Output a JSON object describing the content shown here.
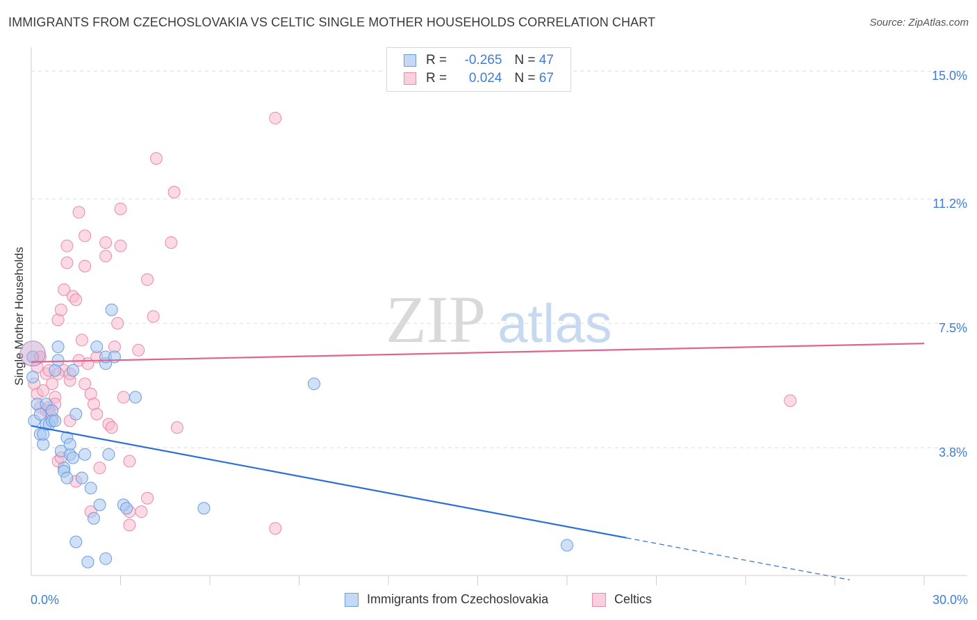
{
  "title": "IMMIGRANTS FROM CZECHOSLOVAKIA VS CELTIC SINGLE MOTHER HOUSEHOLDS CORRELATION CHART",
  "source": "Source: ZipAtlas.com",
  "watermark": {
    "zip": "ZIP",
    "atlas": "atlas"
  },
  "legend": {
    "rows": [
      {
        "r_label": "R =",
        "r_value": "-0.265",
        "n_label": "N =",
        "n_value": "47"
      },
      {
        "r_label": "R =",
        "r_value": "0.024",
        "n_label": "N =",
        "n_value": "67"
      }
    ]
  },
  "colors": {
    "blue_fill": "#a9c8f0",
    "blue_stroke": "#6a9be0",
    "blue_line": "#2a6fd6",
    "pink_fill": "#f7bcd0",
    "pink_stroke": "#e98aa9",
    "pink_line": "#e0648e",
    "axis_label": "#3b7dd8"
  },
  "chart_data": {
    "type": "scatter",
    "title": "IMMIGRANTS FROM CZECHOSLOVAKIA VS CELTIC SINGLE MOTHER HOUSEHOLDS CORRELATION CHART",
    "xlabel": "",
    "ylabel": "Single Mother Households",
    "xlim": [
      0,
      30
    ],
    "ylim": [
      0,
      15.5
    ],
    "x_tick_labels": [
      "0.0%",
      "30.0%"
    ],
    "y_ticks": [
      3.8,
      7.5,
      11.2,
      15.0
    ],
    "y_tick_labels": [
      "3.8%",
      "7.5%",
      "11.2%",
      "15.0%"
    ],
    "series": [
      {
        "name": "Immigrants from Czechoslovakia",
        "color": "blue",
        "points": [
          [
            0.1,
            4.6
          ],
          [
            0.2,
            5.1
          ],
          [
            0.3,
            4.8
          ],
          [
            0.3,
            4.2
          ],
          [
            0.4,
            3.9
          ],
          [
            0.4,
            4.2
          ],
          [
            0.5,
            4.5
          ],
          [
            0.5,
            5.1
          ],
          [
            0.6,
            4.5
          ],
          [
            0.7,
            4.9
          ],
          [
            0.7,
            4.6
          ],
          [
            0.8,
            4.6
          ],
          [
            0.8,
            6.1
          ],
          [
            0.9,
            6.4
          ],
          [
            0.9,
            6.8
          ],
          [
            1.0,
            3.7
          ],
          [
            1.1,
            3.2
          ],
          [
            1.1,
            3.1
          ],
          [
            1.2,
            2.9
          ],
          [
            1.2,
            4.1
          ],
          [
            1.3,
            3.6
          ],
          [
            1.3,
            3.9
          ],
          [
            1.4,
            6.1
          ],
          [
            1.4,
            3.5
          ],
          [
            1.5,
            4.8
          ],
          [
            1.5,
            1.0
          ],
          [
            1.7,
            2.9
          ],
          [
            1.8,
            3.6
          ],
          [
            1.9,
            0.4
          ],
          [
            2.0,
            2.6
          ],
          [
            2.1,
            1.7
          ],
          [
            2.2,
            6.8
          ],
          [
            2.3,
            2.1
          ],
          [
            2.5,
            6.3
          ],
          [
            2.5,
            6.5
          ],
          [
            2.5,
            0.5
          ],
          [
            2.6,
            3.6
          ],
          [
            2.7,
            7.9
          ],
          [
            2.8,
            6.5
          ],
          [
            3.1,
            2.1
          ],
          [
            3.2,
            2.0
          ],
          [
            3.5,
            5.3
          ],
          [
            5.8,
            2.0
          ],
          [
            9.5,
            5.7
          ],
          [
            18.0,
            0.9
          ],
          [
            0.05,
            5.9
          ],
          [
            0.05,
            6.5
          ]
        ],
        "trend": {
          "x0": 0.0,
          "y0": 4.45,
          "x1": 20.0,
          "y1": 1.12,
          "dashed_to_x": 27.5
        }
      },
      {
        "name": "Celtics",
        "color": "pink",
        "points": [
          [
            0.1,
            5.7
          ],
          [
            0.2,
            5.4
          ],
          [
            0.3,
            6.5
          ],
          [
            0.3,
            5.0
          ],
          [
            0.4,
            5.5
          ],
          [
            0.5,
            4.9
          ],
          [
            0.5,
            6.0
          ],
          [
            0.6,
            5.0
          ],
          [
            0.6,
            6.1
          ],
          [
            0.7,
            4.7
          ],
          [
            0.7,
            5.7
          ],
          [
            0.8,
            5.3
          ],
          [
            0.8,
            5.1
          ],
          [
            0.9,
            3.4
          ],
          [
            0.9,
            7.6
          ],
          [
            1.0,
            7.9
          ],
          [
            1.0,
            3.5
          ],
          [
            1.1,
            6.1
          ],
          [
            1.1,
            8.5
          ],
          [
            1.2,
            9.3
          ],
          [
            1.2,
            9.8
          ],
          [
            1.3,
            4.6
          ],
          [
            1.3,
            5.8
          ],
          [
            1.4,
            8.3
          ],
          [
            1.5,
            2.8
          ],
          [
            1.5,
            8.2
          ],
          [
            1.6,
            10.8
          ],
          [
            1.6,
            6.4
          ],
          [
            1.7,
            7.0
          ],
          [
            1.8,
            9.2
          ],
          [
            1.8,
            10.1
          ],
          [
            1.8,
            5.7
          ],
          [
            1.9,
            6.3
          ],
          [
            2.0,
            5.4
          ],
          [
            2.1,
            5.1
          ],
          [
            2.2,
            6.5
          ],
          [
            2.2,
            4.8
          ],
          [
            2.3,
            3.2
          ],
          [
            2.5,
            9.9
          ],
          [
            2.5,
            9.5
          ],
          [
            2.6,
            4.5
          ],
          [
            2.7,
            4.4
          ],
          [
            2.8,
            6.8
          ],
          [
            2.9,
            7.5
          ],
          [
            3.0,
            9.8
          ],
          [
            3.0,
            10.9
          ],
          [
            3.1,
            5.3
          ],
          [
            3.3,
            1.5
          ],
          [
            3.3,
            1.9
          ],
          [
            3.3,
            3.4
          ],
          [
            3.6,
            6.7
          ],
          [
            3.9,
            8.8
          ],
          [
            3.9,
            2.3
          ],
          [
            4.1,
            7.7
          ],
          [
            4.2,
            12.4
          ],
          [
            4.7,
            9.9
          ],
          [
            4.8,
            11.4
          ],
          [
            4.9,
            4.4
          ],
          [
            8.2,
            13.6
          ],
          [
            8.2,
            1.4
          ],
          [
            25.5,
            5.2
          ],
          [
            3.7,
            1.9
          ],
          [
            2.0,
            1.9
          ],
          [
            0.6,
            4.9
          ],
          [
            0.9,
            6.0
          ],
          [
            1.3,
            6.0
          ],
          [
            0.2,
            6.2
          ]
        ],
        "trend": {
          "x0": 0.0,
          "y0": 6.35,
          "x1": 30.0,
          "y1": 6.9
        }
      }
    ]
  },
  "bottom_legend": [
    {
      "label": "Immigrants from Czechoslovakia",
      "color": "blue"
    },
    {
      "label": "Celtics",
      "color": "pink"
    }
  ]
}
